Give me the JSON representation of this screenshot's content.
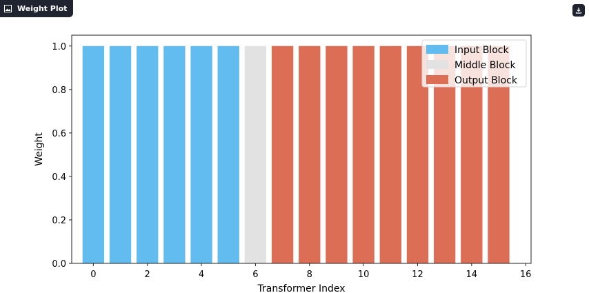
{
  "header": {
    "title": "Weight Plot",
    "icon": "image-icon",
    "download_icon": "download-icon"
  },
  "colors": {
    "input": "#62bcef",
    "middle": "#e2e2e2",
    "output": "#dd6e56",
    "frame": "#222222"
  },
  "chart_data": {
    "type": "bar",
    "xlabel": "Transformer Index",
    "ylabel": "Weight",
    "x": [
      0,
      1,
      2,
      3,
      4,
      5,
      6,
      7,
      8,
      9,
      10,
      11,
      12,
      13,
      14,
      15
    ],
    "values": [
      1,
      1,
      1,
      1,
      1,
      1,
      1,
      1,
      1,
      1,
      1,
      1,
      1,
      1,
      1,
      1
    ],
    "groups": [
      "input",
      "input",
      "input",
      "input",
      "input",
      "input",
      "middle",
      "output",
      "output",
      "output",
      "output",
      "output",
      "output",
      "output",
      "output",
      "output"
    ],
    "series": [
      {
        "name": "Input Block",
        "group": "input",
        "x": [
          0,
          1,
          2,
          3,
          4,
          5
        ]
      },
      {
        "name": "Middle Block",
        "group": "middle",
        "x": [
          6
        ]
      },
      {
        "name": "Output Block",
        "group": "output",
        "x": [
          7,
          8,
          9,
          10,
          11,
          12,
          13,
          14,
          15
        ]
      }
    ],
    "xlim": [
      -0.8,
      16.2
    ],
    "ylim": [
      0,
      1.05
    ],
    "xticks": [
      0,
      2,
      4,
      6,
      8,
      10,
      12,
      14,
      16
    ],
    "xtick_labels": [
      "0",
      "2",
      "4",
      "6",
      "8",
      "10",
      "12",
      "14",
      "16"
    ],
    "yticks": [
      0.0,
      0.2,
      0.4,
      0.6,
      0.8,
      1.0
    ],
    "ytick_labels": [
      "0.0",
      "0.2",
      "0.4",
      "0.6",
      "0.8",
      "1.0"
    ],
    "legend_position": "top-right",
    "grid": false
  }
}
